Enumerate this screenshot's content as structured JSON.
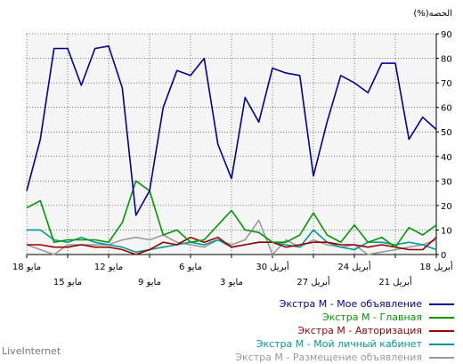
{
  "brand": "LiveInternet",
  "chart_data": {
    "type": "line",
    "unit_label": "(%)الحصه",
    "ylim": [
      0,
      90
    ],
    "y_ticks": [
      0,
      10,
      20,
      30,
      40,
      50,
      60,
      70,
      80,
      90
    ],
    "grid": true,
    "legend_position": "bottom-right",
    "x_tick_labels_row1": [
      "18 مايو",
      "12 مايو",
      "6 مايو",
      "30 أبريل",
      "24 أبريل",
      "18 أبريل"
    ],
    "x_tick_labels_row2": [
      "15 مايو",
      "9 مايو",
      "3 مايو",
      "27 أبريل",
      "21 أبريل"
    ],
    "series": [
      {
        "name": "Экстра М - Мое объявление",
        "color": "#000099",
        "values": [
          26,
          47,
          84,
          84,
          69,
          84,
          85,
          68,
          16,
          26,
          60,
          75,
          73,
          80,
          45,
          31,
          64,
          54,
          76,
          74,
          73,
          32,
          54,
          73,
          70,
          66,
          78,
          78,
          47,
          56,
          51
        ]
      },
      {
        "name": "Экстра М - Главная",
        "color": "#009900",
        "values": [
          19,
          22,
          5,
          6,
          6,
          6,
          5,
          13,
          30,
          26,
          8,
          10,
          5,
          6,
          12,
          18,
          10,
          9,
          5,
          5,
          8,
          17,
          8,
          5,
          12,
          5,
          7,
          3,
          11,
          8,
          12
        ]
      },
      {
        "name": "Экстра М - Авторизация",
        "color": "#990000",
        "values": [
          4,
          4,
          3,
          3,
          4,
          3,
          3,
          2,
          0,
          2,
          5,
          4,
          7,
          5,
          7,
          3,
          4,
          5,
          5,
          3,
          4,
          5,
          5,
          4,
          4,
          3,
          4,
          3,
          2,
          2,
          7
        ]
      },
      {
        "name": "Экстра М - Мой личный кабинет",
        "color": "#009999",
        "values": [
          10,
          10,
          6,
          5,
          7,
          5,
          4,
          3,
          1,
          2,
          3,
          4,
          5,
          4,
          6,
          3,
          4,
          5,
          5,
          4,
          3,
          10,
          5,
          3,
          2,
          5,
          5,
          4,
          5,
          4,
          2
        ]
      },
      {
        "name": "Экстра М - Размещение объявления",
        "color": "#999999",
        "values": [
          4,
          2,
          0,
          4,
          4,
          4,
          4,
          6,
          7,
          6,
          8,
          5,
          4,
          3,
          6,
          4,
          6,
          14,
          0,
          6,
          3,
          6,
          4,
          3,
          4,
          0,
          1,
          2,
          3,
          4,
          6
        ]
      }
    ]
  }
}
